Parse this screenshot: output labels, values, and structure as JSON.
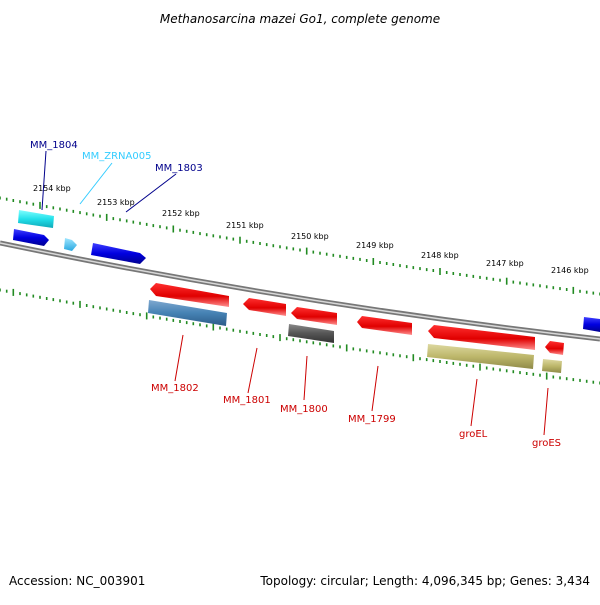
{
  "title": "Methanosarcina mazei Go1, complete genome",
  "accession": "Accession: NC_003901",
  "summary": "Topology: circular; Length: 4,096,345 bp; Genes: 3,434",
  "ruler_labels": [
    "2154 kbp",
    "2153 kbp",
    "2152 kbp",
    "2151 kbp",
    "2150 kbp",
    "2149 kbp",
    "2148 kbp",
    "2147 kbp",
    "2146 kbp"
  ],
  "genes_top": [
    {
      "name": "MM_1804",
      "color": "#00008b"
    },
    {
      "name": "MM_ZRNA005",
      "color": "#33ccff"
    },
    {
      "name": "MM_1803",
      "color": "#00008b"
    }
  ],
  "genes_bottom": [
    {
      "name": "MM_1802",
      "color": "#cc0000"
    },
    {
      "name": "MM_1801",
      "color": "#cc0000"
    },
    {
      "name": "MM_1800",
      "color": "#cc0000"
    },
    {
      "name": "MM_1799",
      "color": "#cc0000"
    },
    {
      "name": "groEL",
      "color": "#cc0000"
    },
    {
      "name": "groES",
      "color": "#cc0000"
    }
  ],
  "colors": {
    "forward_strand": "#0000ee",
    "reverse_strand": "#ee0000",
    "rna": "#22e0ea",
    "tick": "#228b22",
    "backbone": "#888888",
    "protein_blue": "#4682b4",
    "protein_grey": "#555555",
    "protein_khaki": "#bdb76b"
  }
}
